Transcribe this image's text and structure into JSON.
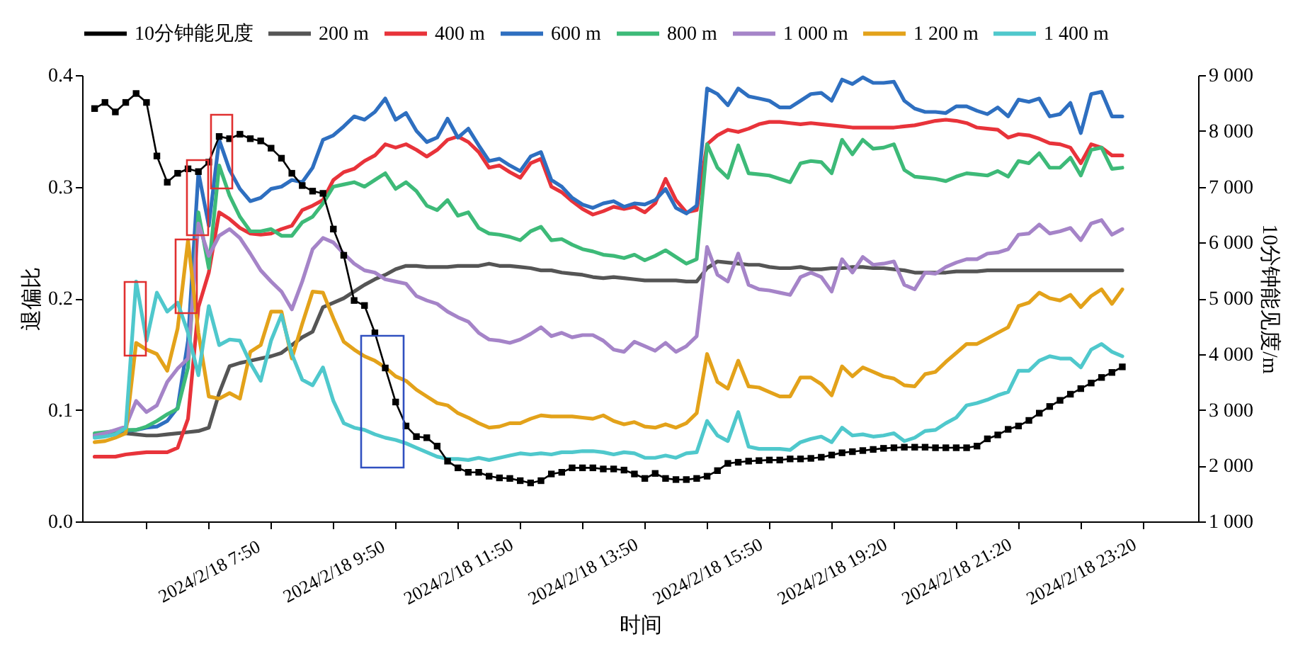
{
  "chart_data": {
    "type": "line",
    "xlabel": "时间",
    "ylabel": "退偏比",
    "y2label": "10分钟能见度/m",
    "legend": "top",
    "grid": false,
    "line_style": "solid",
    "categories": [
      null,
      null,
      null,
      null,
      null,
      null,
      null,
      null,
      null,
      null,
      null,
      "2024/2/18 7:50",
      null,
      null,
      null,
      null,
      null,
      null,
      null,
      null,
      null,
      null,
      null,
      "2024/2/18 9:50",
      null,
      null,
      null,
      null,
      null,
      null,
      null,
      null,
      null,
      null,
      null,
      "2024/2/18 11:50",
      null,
      null,
      null,
      null,
      null,
      null,
      null,
      null,
      null,
      null,
      null,
      "2024/2/18 13:50",
      null,
      null,
      null,
      null,
      null,
      null,
      null,
      null,
      null,
      null,
      null,
      "2024/2/18 15:50",
      null,
      null,
      null,
      null,
      null,
      null,
      null,
      null,
      null,
      null,
      null,
      "2024/2/18 19:20",
      null,
      null,
      null,
      null,
      null,
      null,
      null,
      null,
      null,
      null,
      null,
      "2024/2/18 21:20",
      null,
      null,
      null,
      null,
      null,
      null,
      null,
      null,
      null,
      null,
      null,
      "2024/2/18 23:20",
      null,
      null,
      null,
      null
    ],
    "ylim": [
      0,
      0.4
    ],
    "yticks": [
      {
        "value": 0,
        "label": "0.0"
      },
      0.1,
      0.2,
      0.3,
      0.4
    ],
    "y2lim": [
      1000,
      9000
    ],
    "y2ticks": [
      {
        "value": 1000,
        "label": "1 000"
      },
      {
        "value": 2000,
        "label": "2 000"
      },
      {
        "value": 3000,
        "label": "3 000"
      },
      {
        "value": 4000,
        "label": "4 000"
      },
      {
        "value": 5000,
        "label": "5 000"
      },
      {
        "value": 6000,
        "label": "6 000"
      },
      {
        "value": 7000,
        "label": "7 000"
      },
      {
        "value": 8000,
        "label": "8 000"
      },
      {
        "value": 9000,
        "label": "9 000"
      }
    ],
    "series": [
      {
        "name": "10分钟能见度",
        "color": "#000000",
        "axis": "y2",
        "marker": "square",
        "values": [
          8400,
          8510,
          8340,
          8510,
          8670,
          8510,
          7550,
          7080,
          7240,
          7320,
          7270,
          7440,
          7900,
          7860,
          7940,
          7860,
          7820,
          7690,
          7510,
          7240,
          7020,
          6920,
          6880,
          6240,
          5770,
          4960,
          4870,
          4380,
          3750,
          3140,
          2710,
          2520,
          2500,
          2350,
          2080,
          1960,
          1880,
          1880,
          1810,
          1780,
          1770,
          1730,
          1690,
          1730,
          1850,
          1880,
          1960,
          1960,
          1960,
          1940,
          1940,
          1920,
          1850,
          1770,
          1860,
          1770,
          1750,
          1750,
          1770,
          1810,
          1910,
          2040,
          2060,
          2080,
          2090,
          2100,
          2100,
          2120,
          2120,
          2130,
          2150,
          2190,
          2230,
          2250,
          2270,
          2290,
          2310,
          2320,
          2330,
          2330,
          2330,
          2320,
          2320,
          2320,
          2320,
          2350,
          2480,
          2550,
          2650,
          2710,
          2810,
          2940,
          3060,
          3170,
          3280,
          3380,
          3480,
          3580,
          3670,
          3770
        ]
      },
      {
        "name": "200 m",
        "color": "#555555",
        "values": [
          0.077,
          0.078,
          0.079,
          0.079,
          0.078,
          0.077,
          0.077,
          0.078,
          0.079,
          0.08,
          0.081,
          0.084,
          0.115,
          0.139,
          0.142,
          0.144,
          0.146,
          0.148,
          0.151,
          0.158,
          0.165,
          0.17,
          0.192,
          0.196,
          0.2,
          0.206,
          0.212,
          0.217,
          0.221,
          0.226,
          0.229,
          0.229,
          0.228,
          0.228,
          0.228,
          0.229,
          0.229,
          0.229,
          0.231,
          0.229,
          0.229,
          0.228,
          0.227,
          0.225,
          0.225,
          0.223,
          0.222,
          0.221,
          0.219,
          0.218,
          0.219,
          0.218,
          0.217,
          0.216,
          0.216,
          0.216,
          0.216,
          0.215,
          0.215,
          0.227,
          0.233,
          0.232,
          0.231,
          0.23,
          0.23,
          0.228,
          0.227,
          0.227,
          0.228,
          0.226,
          0.226,
          0.227,
          0.227,
          0.228,
          0.228,
          0.227,
          0.227,
          0.226,
          0.225,
          0.223,
          0.223,
          0.223,
          0.223,
          0.224,
          0.224,
          0.224,
          0.225,
          0.225,
          0.225,
          0.225,
          0.225,
          0.225,
          0.225,
          0.225,
          0.225,
          0.225,
          0.225,
          0.225,
          0.225,
          0.225
        ]
      },
      {
        "name": "400 m",
        "color": "#e8333a",
        "values": [
          0.058,
          0.058,
          0.058,
          0.06,
          0.061,
          0.062,
          0.062,
          0.062,
          0.066,
          0.092,
          0.192,
          0.223,
          0.277,
          0.271,
          0.263,
          0.258,
          0.257,
          0.258,
          0.262,
          0.265,
          0.279,
          0.283,
          0.288,
          0.306,
          0.313,
          0.316,
          0.323,
          0.328,
          0.338,
          0.335,
          0.338,
          0.333,
          0.327,
          0.333,
          0.342,
          0.345,
          0.34,
          0.331,
          0.317,
          0.319,
          0.313,
          0.308,
          0.321,
          0.325,
          0.3,
          0.295,
          0.287,
          0.28,
          0.275,
          0.278,
          0.282,
          0.28,
          0.282,
          0.277,
          0.285,
          0.307,
          0.288,
          0.277,
          0.279,
          0.338,
          0.346,
          0.351,
          0.349,
          0.352,
          0.356,
          0.358,
          0.358,
          0.357,
          0.356,
          0.357,
          0.356,
          0.355,
          0.354,
          0.353,
          0.353,
          0.353,
          0.353,
          0.353,
          0.354,
          0.355,
          0.357,
          0.359,
          0.36,
          0.359,
          0.357,
          0.353,
          0.352,
          0.351,
          0.344,
          0.347,
          0.346,
          0.343,
          0.339,
          0.338,
          0.335,
          0.321,
          0.338,
          0.335,
          0.328,
          0.328
        ]
      },
      {
        "name": "600 m",
        "color": "#2e6fc0",
        "values": [
          0.077,
          0.078,
          0.079,
          0.081,
          0.082,
          0.084,
          0.085,
          0.09,
          0.102,
          0.162,
          0.313,
          0.265,
          0.342,
          0.315,
          0.298,
          0.287,
          0.29,
          0.298,
          0.3,
          0.306,
          0.304,
          0.317,
          0.342,
          0.346,
          0.354,
          0.363,
          0.36,
          0.367,
          0.379,
          0.36,
          0.366,
          0.35,
          0.34,
          0.344,
          0.361,
          0.344,
          0.352,
          0.337,
          0.323,
          0.325,
          0.319,
          0.314,
          0.327,
          0.331,
          0.306,
          0.3,
          0.29,
          0.284,
          0.281,
          0.285,
          0.287,
          0.282,
          0.285,
          0.284,
          0.288,
          0.298,
          0.281,
          0.276,
          0.283,
          0.388,
          0.383,
          0.373,
          0.388,
          0.381,
          0.379,
          0.377,
          0.371,
          0.371,
          0.377,
          0.383,
          0.384,
          0.377,
          0.396,
          0.392,
          0.398,
          0.393,
          0.393,
          0.394,
          0.377,
          0.37,
          0.367,
          0.367,
          0.366,
          0.372,
          0.372,
          0.368,
          0.365,
          0.371,
          0.363,
          0.378,
          0.376,
          0.379,
          0.363,
          0.365,
          0.375,
          0.348,
          0.383,
          0.385,
          0.363,
          0.363
        ]
      },
      {
        "name": "800 m",
        "color": "#3dba78",
        "values": [
          0.079,
          0.08,
          0.081,
          0.082,
          0.082,
          0.085,
          0.09,
          0.096,
          0.101,
          0.138,
          0.277,
          0.227,
          0.319,
          0.292,
          0.273,
          0.26,
          0.26,
          0.262,
          0.256,
          0.256,
          0.268,
          0.273,
          0.285,
          0.3,
          0.302,
          0.304,
          0.3,
          0.306,
          0.312,
          0.298,
          0.304,
          0.296,
          0.283,
          0.279,
          0.288,
          0.274,
          0.277,
          0.263,
          0.258,
          0.257,
          0.255,
          0.252,
          0.26,
          0.264,
          0.252,
          0.253,
          0.248,
          0.244,
          0.242,
          0.239,
          0.238,
          0.236,
          0.239,
          0.234,
          0.238,
          0.243,
          0.237,
          0.231,
          0.235,
          0.338,
          0.317,
          0.308,
          0.337,
          0.312,
          0.311,
          0.31,
          0.307,
          0.304,
          0.321,
          0.323,
          0.322,
          0.312,
          0.342,
          0.329,
          0.342,
          0.334,
          0.335,
          0.338,
          0.315,
          0.309,
          0.308,
          0.307,
          0.305,
          0.309,
          0.312,
          0.311,
          0.31,
          0.314,
          0.309,
          0.323,
          0.321,
          0.33,
          0.317,
          0.317,
          0.326,
          0.31,
          0.333,
          0.335,
          0.316,
          0.317
        ]
      },
      {
        "name": "1 000 m",
        "color": "#a584c8",
        "values": [
          0.077,
          0.079,
          0.082,
          0.085,
          0.108,
          0.098,
          0.104,
          0.125,
          0.137,
          0.146,
          0.267,
          0.238,
          0.256,
          0.262,
          0.254,
          0.24,
          0.225,
          0.215,
          0.206,
          0.19,
          0.215,
          0.244,
          0.254,
          0.25,
          0.24,
          0.231,
          0.225,
          0.223,
          0.217,
          0.215,
          0.213,
          0.202,
          0.198,
          0.195,
          0.188,
          0.183,
          0.179,
          0.169,
          0.163,
          0.162,
          0.16,
          0.163,
          0.168,
          0.174,
          0.166,
          0.169,
          0.165,
          0.167,
          0.167,
          0.162,
          0.154,
          0.152,
          0.161,
          0.157,
          0.153,
          0.16,
          0.152,
          0.157,
          0.166,
          0.246,
          0.221,
          0.215,
          0.24,
          0.212,
          0.208,
          0.207,
          0.205,
          0.203,
          0.219,
          0.223,
          0.219,
          0.206,
          0.235,
          0.223,
          0.237,
          0.23,
          0.231,
          0.233,
          0.212,
          0.208,
          0.223,
          0.222,
          0.228,
          0.232,
          0.235,
          0.235,
          0.24,
          0.241,
          0.244,
          0.257,
          0.258,
          0.266,
          0.258,
          0.26,
          0.263,
          0.252,
          0.267,
          0.27,
          0.257,
          0.262
        ]
      },
      {
        "name": "1 200 m",
        "color": "#e3a21a",
        "values": [
          0.071,
          0.072,
          0.075,
          0.079,
          0.16,
          0.154,
          0.15,
          0.135,
          0.173,
          0.252,
          0.169,
          0.112,
          0.11,
          0.115,
          0.11,
          0.152,
          0.158,
          0.188,
          0.188,
          0.146,
          0.177,
          0.206,
          0.205,
          0.182,
          0.161,
          0.154,
          0.148,
          0.144,
          0.138,
          0.13,
          0.126,
          0.118,
          0.112,
          0.106,
          0.104,
          0.097,
          0.093,
          0.088,
          0.084,
          0.085,
          0.088,
          0.088,
          0.092,
          0.095,
          0.094,
          0.094,
          0.094,
          0.093,
          0.092,
          0.095,
          0.09,
          0.087,
          0.089,
          0.085,
          0.084,
          0.087,
          0.084,
          0.088,
          0.097,
          0.15,
          0.125,
          0.119,
          0.144,
          0.121,
          0.12,
          0.116,
          0.112,
          0.112,
          0.129,
          0.129,
          0.123,
          0.113,
          0.139,
          0.13,
          0.138,
          0.134,
          0.13,
          0.128,
          0.122,
          0.121,
          0.132,
          0.134,
          0.143,
          0.151,
          0.159,
          0.159,
          0.164,
          0.169,
          0.174,
          0.193,
          0.196,
          0.205,
          0.2,
          0.198,
          0.203,
          0.192,
          0.202,
          0.208,
          0.195,
          0.208
        ]
      },
      {
        "name": "1 400 m",
        "color": "#4fc8cc",
        "values": [
          0.075,
          0.076,
          0.078,
          0.084,
          0.215,
          0.162,
          0.205,
          0.188,
          0.196,
          0.169,
          0.131,
          0.193,
          0.158,
          0.163,
          0.162,
          0.142,
          0.126,
          0.162,
          0.185,
          0.15,
          0.127,
          0.122,
          0.138,
          0.108,
          0.088,
          0.084,
          0.082,
          0.078,
          0.075,
          0.073,
          0.07,
          0.066,
          0.062,
          0.058,
          0.056,
          0.056,
          0.055,
          0.057,
          0.055,
          0.057,
          0.059,
          0.061,
          0.06,
          0.061,
          0.06,
          0.062,
          0.062,
          0.063,
          0.063,
          0.062,
          0.06,
          0.062,
          0.061,
          0.057,
          0.057,
          0.059,
          0.057,
          0.061,
          0.062,
          0.09,
          0.077,
          0.072,
          0.098,
          0.067,
          0.065,
          0.065,
          0.065,
          0.064,
          0.071,
          0.074,
          0.076,
          0.071,
          0.084,
          0.077,
          0.078,
          0.076,
          0.077,
          0.079,
          0.072,
          0.075,
          0.081,
          0.082,
          0.088,
          0.093,
          0.104,
          0.106,
          0.109,
          0.113,
          0.116,
          0.135,
          0.135,
          0.144,
          0.148,
          0.146,
          0.146,
          0.138,
          0.154,
          0.159,
          0.152,
          0.148
        ]
      }
    ]
  }
}
